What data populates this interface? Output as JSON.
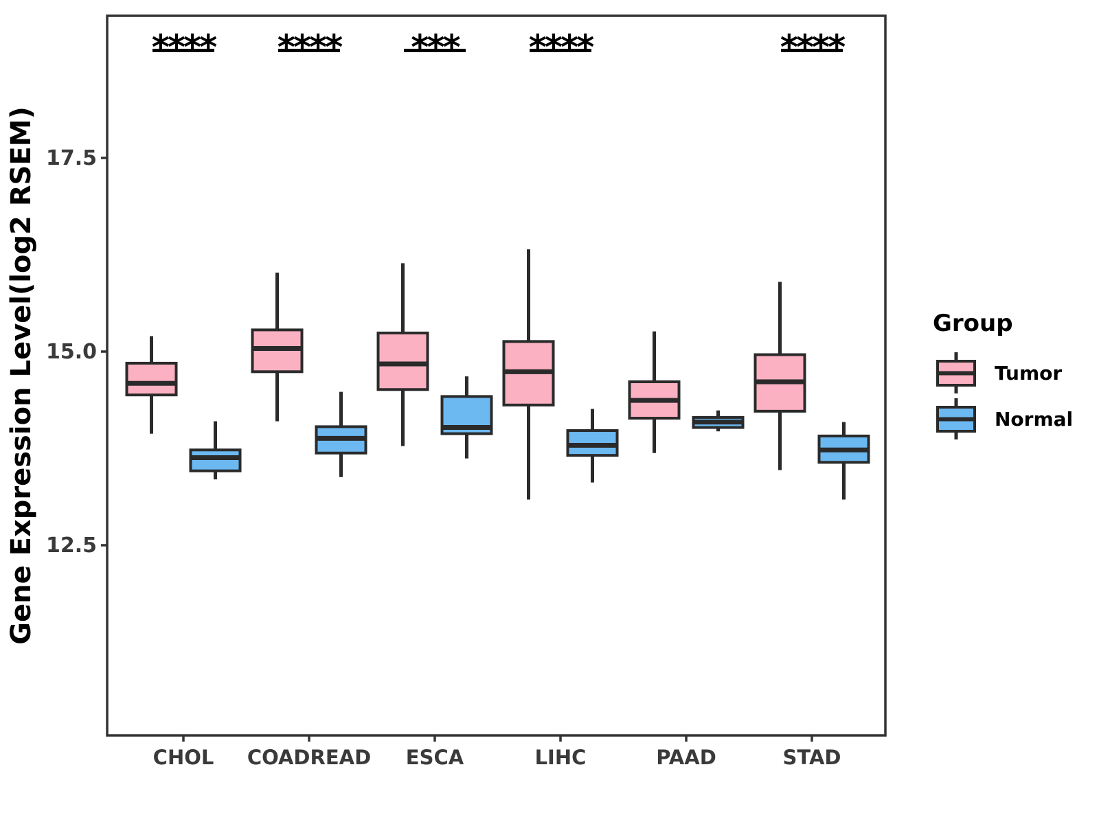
{
  "chart_data": {
    "type": "boxplot",
    "title": "",
    "ylabel": "Gene Expression Level(log2 RSEM)",
    "xlabel": "",
    "legend_title": "Group",
    "legend_position": "right",
    "grid": false,
    "ylim": [
      10.0,
      19.35
    ],
    "y_ticks": [
      17.5,
      15.0,
      12.5
    ],
    "y_tick_labels": [
      "17.5",
      "15.0",
      "12.5"
    ],
    "categories": [
      "CHOL",
      "COADREAD",
      "ESCA",
      "LIHC",
      "PAAD",
      "STAD"
    ],
    "groups": [
      {
        "name": "Tumor",
        "color": "#FBB1C2"
      },
      {
        "name": "Normal",
        "color": "#6CB9F2"
      }
    ],
    "series": [
      {
        "group": "Tumor",
        "boxes": [
          {
            "category": "CHOL",
            "low": 13.94,
            "q1": 14.44,
            "median": 14.59,
            "q3": 14.85,
            "high": 15.2
          },
          {
            "category": "COADREAD",
            "low": 14.1,
            "q1": 14.74,
            "median": 15.04,
            "q3": 15.28,
            "high": 16.02
          },
          {
            "category": "ESCA",
            "low": 13.78,
            "q1": 14.51,
            "median": 14.84,
            "q3": 15.24,
            "high": 16.14
          },
          {
            "category": "LIHC",
            "low": 13.09,
            "q1": 14.31,
            "median": 14.74,
            "q3": 15.13,
            "high": 16.32
          },
          {
            "category": "PAAD",
            "low": 13.69,
            "q1": 14.14,
            "median": 14.37,
            "q3": 14.61,
            "high": 15.26
          },
          {
            "category": "STAD",
            "low": 13.47,
            "q1": 14.23,
            "median": 14.61,
            "q3": 14.96,
            "high": 15.9
          }
        ]
      },
      {
        "group": "Normal",
        "boxes": [
          {
            "category": "CHOL",
            "low": 13.35,
            "q1": 13.46,
            "median": 13.63,
            "q3": 13.73,
            "high": 14.1
          },
          {
            "category": "COADREAD",
            "low": 13.38,
            "q1": 13.69,
            "median": 13.88,
            "q3": 14.03,
            "high": 14.48
          },
          {
            "category": "ESCA",
            "low": 13.62,
            "q1": 13.94,
            "median": 14.02,
            "q3": 14.42,
            "high": 14.68
          },
          {
            "category": "LIHC",
            "low": 13.31,
            "q1": 13.66,
            "median": 13.79,
            "q3": 13.98,
            "high": 14.26
          },
          {
            "category": "PAAD",
            "low": 13.97,
            "q1": 14.02,
            "median": 14.09,
            "q3": 14.15,
            "high": 14.24
          },
          {
            "category": "STAD",
            "low": 13.09,
            "q1": 13.57,
            "median": 13.73,
            "q3": 13.91,
            "high": 14.09
          }
        ]
      }
    ],
    "significance": [
      {
        "category": "CHOL",
        "label": "****"
      },
      {
        "category": "COADREAD",
        "label": "****"
      },
      {
        "category": "ESCA",
        "label": "***"
      },
      {
        "category": "LIHC",
        "label": "****"
      },
      {
        "category": "STAD",
        "label": "****"
      }
    ],
    "style": {
      "box_border_color": "#2a2a2a",
      "panel_border_color": "#333333",
      "tick_label_color": "#3a3a3a",
      "text_color": "#000000"
    }
  }
}
